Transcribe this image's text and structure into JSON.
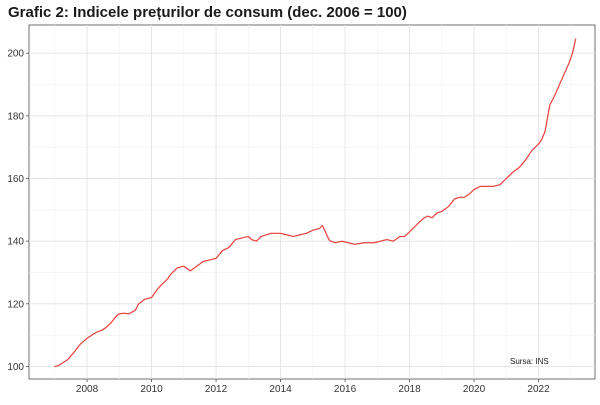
{
  "chart_data": {
    "type": "line",
    "title": "Grafic 2: Indicele prețurilor de consum (dec. 2006 = 100)",
    "xlabel": "",
    "ylabel": "",
    "xlim": [
      2006.2,
      2023.75
    ],
    "ylim": [
      96,
      209
    ],
    "x_ticks": [
      2008,
      2010,
      2012,
      2014,
      2016,
      2018,
      2020,
      2022
    ],
    "y_ticks": [
      100,
      120,
      140,
      160,
      180,
      200
    ],
    "grid": true,
    "legend": "none",
    "line_color": "#e8403a",
    "annotation": "Sursa: INS",
    "series": [
      {
        "x": [
          2007.0,
          2007.1,
          2007.25,
          2007.4,
          2007.6,
          2007.8,
          2008.0,
          2008.15,
          2008.3,
          2008.45,
          2008.6,
          2008.75,
          2008.9,
          2009.0,
          2009.15,
          2009.3,
          2009.5,
          2009.6,
          2009.8,
          2010.0,
          2010.1,
          2010.25,
          2010.4,
          2010.5,
          2010.6,
          2010.8,
          2011.0,
          2011.2,
          2011.4,
          2011.6,
          2011.8,
          2012.0,
          2012.2,
          2012.4,
          2012.6,
          2012.8,
          2013.0,
          2013.1,
          2013.25,
          2013.4,
          2013.55,
          2013.7,
          2013.85,
          2014.0,
          2014.2,
          2014.4,
          2014.6,
          2014.8,
          2015.0,
          2015.2,
          2015.3,
          2015.5,
          2015.55,
          2015.7,
          2015.9,
          2016.1,
          2016.3,
          2016.6,
          2016.9,
          2017.1,
          2017.3,
          2017.5,
          2017.7,
          2017.85,
          2018.0,
          2018.2,
          2018.4,
          2018.55,
          2018.7,
          2018.85,
          2019.0,
          2019.2,
          2019.4,
          2019.55,
          2019.7,
          2019.85,
          2020.0,
          2020.2,
          2020.4,
          2020.6,
          2020.8,
          2021.0,
          2021.2,
          2021.4,
          2021.6,
          2021.8,
          2022.0,
          2022.1,
          2022.2,
          2022.35,
          2022.5,
          2022.65,
          2022.8,
          2022.95,
          2023.05,
          2023.15
        ],
        "y": [
          100.0,
          100.2,
          101.2,
          102.2,
          104.6,
          107.2,
          109.0,
          110.0,
          111.0,
          111.5,
          112.5,
          114.0,
          116.0,
          116.8,
          117.0,
          116.8,
          118.0,
          120.0,
          121.5,
          122.0,
          123.5,
          125.5,
          127.0,
          128.0,
          129.5,
          131.5,
          132.0,
          130.5,
          132.0,
          133.5,
          134.0,
          134.5,
          137.0,
          138.0,
          140.5,
          141.0,
          141.5,
          140.5,
          140.0,
          141.5,
          142.0,
          142.5,
          142.5,
          142.5,
          142.0,
          141.5,
          142.0,
          142.5,
          143.5,
          144.0,
          145.0,
          140.5,
          140.0,
          139.5,
          140.0,
          139.5,
          139.0,
          139.5,
          139.5,
          140.0,
          140.5,
          140.0,
          141.5,
          141.5,
          143.0,
          145.0,
          147.0,
          148.0,
          147.5,
          149.0,
          149.5,
          151.0,
          153.5,
          154.0,
          154.0,
          155.0,
          156.5,
          157.5,
          157.5,
          157.5,
          158.0,
          160.0,
          162.0,
          163.5,
          166.0,
          169.0,
          171.0,
          172.5,
          175.0,
          183.5,
          186.5,
          190.0,
          193.5,
          197.0,
          200.0,
          204.5
        ]
      }
    ]
  }
}
